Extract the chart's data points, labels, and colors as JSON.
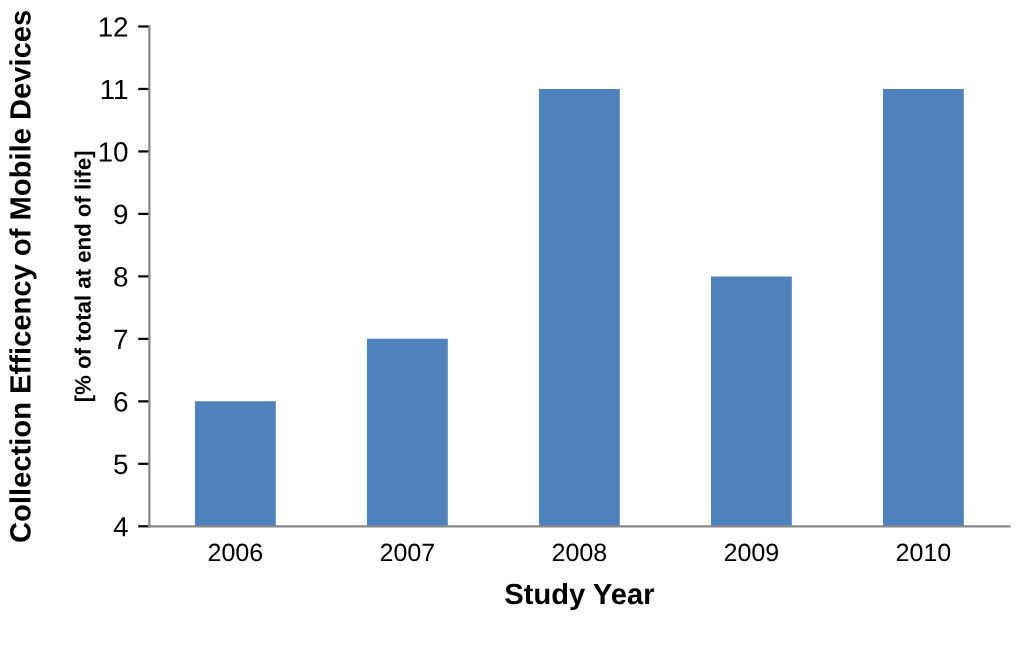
{
  "chart_data": {
    "type": "bar",
    "xlabel": "Study Year",
    "ylabel": "Collection Efficency of Mobile Devices\n[% of total at end of life]",
    "categories": [
      "2006",
      "2007",
      "2008",
      "2009",
      "2010"
    ],
    "values": [
      6,
      7,
      11,
      8,
      11
    ],
    "color": "#4f81bd",
    "ylim": [
      4,
      12
    ],
    "yticks": [
      4,
      5,
      6,
      7,
      8,
      9,
      10,
      11,
      12
    ],
    "grid": false,
    "legend": false
  }
}
